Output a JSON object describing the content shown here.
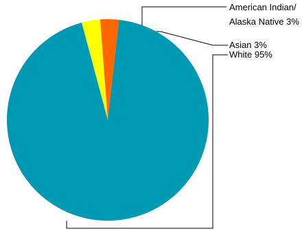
{
  "chart_data": {
    "type": "pie",
    "title": "",
    "slices": [
      {
        "label_lines": [
          "American Indian/",
          "Alaska Native 3%"
        ],
        "value": 3,
        "color": "#ffff00"
      },
      {
        "label_lines": [
          "Asian 3%"
        ],
        "value": 3,
        "color": "#ff6600"
      },
      {
        "label_lines": [
          "White 95%"
        ],
        "value": 95,
        "color": "#0099b3"
      }
    ],
    "legend": "none",
    "labels": "outside with leader lines"
  }
}
